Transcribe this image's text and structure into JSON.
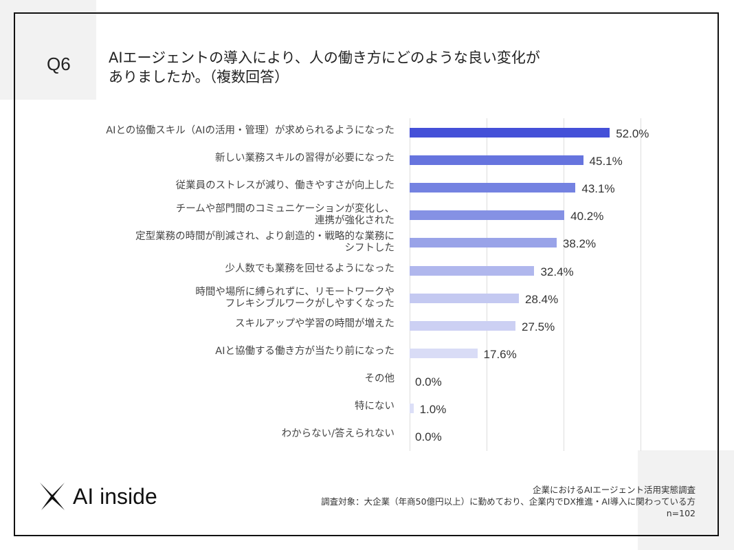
{
  "question": {
    "number": "Q6",
    "title": "AIエージェントの導入により、人の働き方にどのような良い変化が\nありましたか。（複数回答）"
  },
  "chart_data": {
    "type": "bar",
    "orientation": "horizontal",
    "title": "AIエージェントの導入により、人の働き方にどのような良い変化がありましたか。（複数回答）",
    "categories": [
      "AIとの協働スキル（AIの活用・管理）が求められるようになった",
      "新しい業務スキルの習得が必要になった",
      "従業員のストレスが減り、働きやすさが向上した",
      "チームや部門間のコミュニケーションが変化し、\n連携が強化された",
      "定型業務の時間が削減され、より創造的・戦略的な業務に\nシフトした",
      "少人数でも業務を回せるようになった",
      "時間や場所に縛られずに、リモートワークや\nフレキシブルワークがしやすくなった",
      "スキルアップや学習の時間が増えた",
      "AIと協働する働き方が当たり前になった",
      "その他",
      "特にない",
      "わからない/答えられない"
    ],
    "values": [
      52.0,
      45.1,
      43.1,
      40.2,
      38.2,
      32.4,
      28.4,
      27.5,
      17.6,
      0.0,
      1.0,
      0.0
    ],
    "value_labels": [
      "52.0%",
      "45.1%",
      "43.1%",
      "40.2%",
      "38.2%",
      "32.4%",
      "28.4%",
      "27.5%",
      "17.6%",
      "0.0%",
      "1.0%",
      "0.0%"
    ],
    "colors": [
      "#4450d8",
      "#6674de",
      "#7482e1",
      "#8591e4",
      "#99a3e8",
      "#b0b7ed",
      "#c4c9f1",
      "#ccd0f3",
      "#d9dcf6",
      "#dcdff7",
      "#dcdff7",
      "#dcdff7"
    ],
    "xlim": [
      0,
      60
    ],
    "grid_ticks": [
      0,
      20,
      40,
      60
    ],
    "grid": true,
    "unit": "%"
  },
  "footer": {
    "logo": "AI inside",
    "survey": "企業におけるAIエージェント活用実態調査",
    "target": "調査対象：大企業（年商50億円以上）に勤めており、企業内でDX推進・AI導入に関わっている方",
    "n": "n=102"
  }
}
